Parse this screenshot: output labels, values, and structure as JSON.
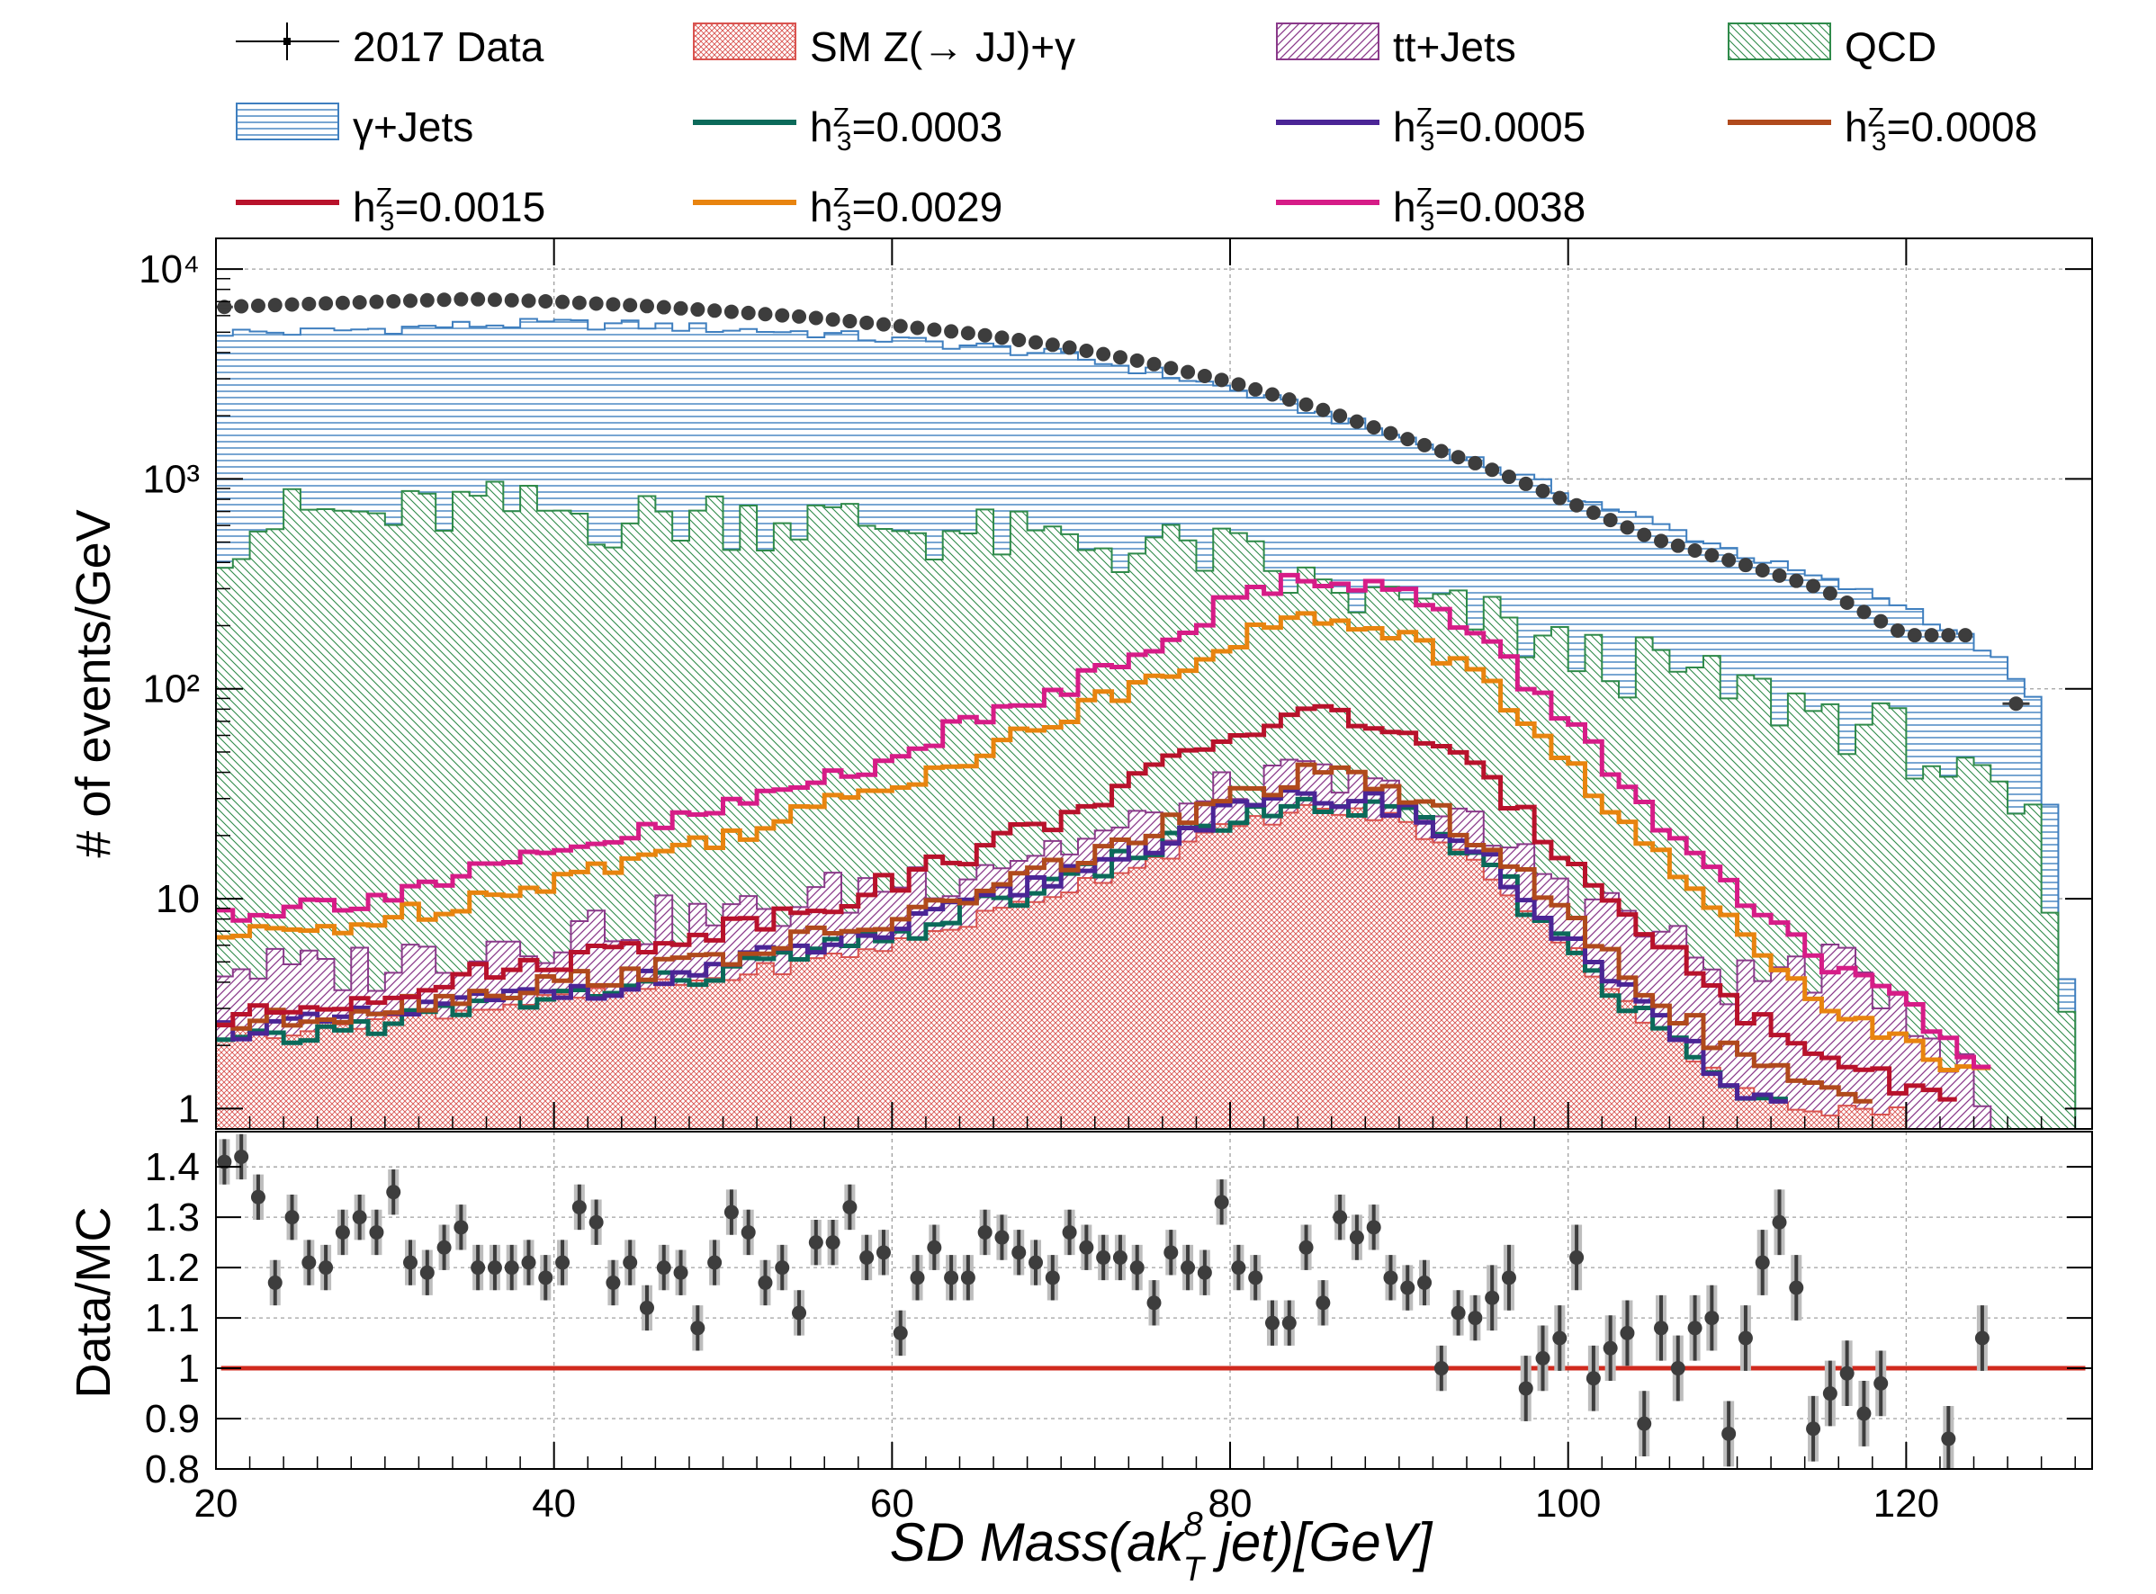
{
  "legend": {
    "data": "2017 Data",
    "sm": "SM Z(→ JJ)+γ",
    "tt": "tt+Jets",
    "qcd": "QCD",
    "gjets": "γ+Jets",
    "h3_0003": "=0.0003",
    "h3_0005": "=0.0005",
    "h3_0008": "=0.0008",
    "h3_0015": "=0.0015",
    "h3_0029": "=0.0029",
    "h3_0038": "=0.0038",
    "h3_symbol": "h",
    "h3_sub": "3",
    "h3_sup": "Z"
  },
  "chart_data": [
    {
      "type": "area",
      "panel": "main",
      "ylabel": "# of events/GeV",
      "yscale": "log",
      "ylim": [
        0.8,
        14000
      ],
      "xlim": [
        20,
        131
      ],
      "y_ticks": [
        "10⁴",
        "10³",
        "10²",
        "10",
        "1"
      ],
      "grid": true,
      "legend_position": "top",
      "series": [
        {
          "name": "2017 Data",
          "kind": "points",
          "x": [
            20.5,
            25,
            30,
            35,
            40,
            45,
            50,
            55,
            60,
            65,
            70,
            75,
            80,
            85,
            90,
            95,
            100,
            105,
            110,
            115,
            120,
            124.5,
            126.5
          ],
          "y": [
            6600,
            6800,
            7000,
            7200,
            7000,
            6700,
            6300,
            5900,
            5400,
            4900,
            4300,
            3600,
            2900,
            2200,
            1600,
            1150,
            780,
            520,
            400,
            300,
            180,
            180,
            85
          ]
        },
        {
          "name": "γ+Jets",
          "kind": "stack",
          "x": [
            20,
            25,
            30,
            35,
            40,
            45,
            50,
            55,
            60,
            65,
            70,
            75,
            80,
            85,
            90,
            95,
            100,
            105,
            110,
            115,
            120,
            125,
            128,
            130
          ],
          "y": [
            5000,
            5000,
            5200,
            5400,
            5500,
            5400,
            5200,
            5000,
            4600,
            4300,
            3900,
            3300,
            2700,
            2100,
            1600,
            1200,
            850,
            620,
            450,
            330,
            250,
            150,
            80,
            1.5
          ]
        },
        {
          "name": "QCD",
          "kind": "stack",
          "x": [
            20,
            25,
            30,
            35,
            40,
            45,
            50,
            55,
            60,
            65,
            70,
            75,
            80,
            85,
            90,
            95,
            100,
            105,
            110,
            115,
            120,
            125,
            128,
            130
          ],
          "y": [
            550,
            700,
            650,
            750,
            700,
            650,
            700,
            650,
            600,
            550,
            500,
            480,
            450,
            300,
            250,
            220,
            150,
            130,
            100,
            80,
            60,
            30,
            20,
            1.1
          ]
        },
        {
          "name": "tt+Jets",
          "kind": "stack",
          "x": [
            20,
            25,
            30,
            35,
            40,
            45,
            50,
            55,
            60,
            65,
            70,
            75,
            80,
            85,
            90,
            95,
            100,
            105,
            110,
            115,
            120,
            125
          ],
          "y": [
            5,
            4.5,
            5,
            6,
            7,
            8,
            8,
            10,
            12,
            15,
            18,
            22,
            32,
            38,
            30,
            20,
            12,
            7,
            4,
            5,
            3.5,
            1
          ]
        },
        {
          "name": "SM Z(→ JJ)+γ",
          "kind": "stack",
          "x": [
            20,
            25,
            30,
            35,
            40,
            45,
            50,
            55,
            60,
            65,
            70,
            75,
            80,
            85,
            90,
            95,
            100,
            105,
            110,
            115,
            120
          ],
          "y": [
            2.2,
            2.4,
            2.7,
            3,
            3.3,
            3.7,
            4.2,
            5,
            6,
            8,
            11,
            15,
            22,
            27,
            24,
            14,
            6,
            2.5,
            1.2,
            1,
            1
          ]
        },
        {
          "name": "h₃ᶻ=0.0003",
          "kind": "line",
          "color": "#0b6a5a",
          "x": [
            20,
            25,
            30,
            35,
            40,
            45,
            50,
            55,
            60,
            65,
            70,
            75,
            80,
            85,
            90,
            95,
            100,
            105,
            110,
            113
          ],
          "y": [
            2,
            2.2,
            2.6,
            3,
            3.4,
            3.8,
            4.5,
            5.5,
            6.5,
            9,
            12,
            17,
            24,
            28,
            26,
            15,
            6,
            2.5,
            1.2,
            1
          ]
        },
        {
          "name": "h₃ᶻ=0.0005",
          "kind": "line",
          "color": "#4b2596",
          "x": [
            20,
            25,
            30,
            35,
            40,
            45,
            50,
            55,
            60,
            65,
            70,
            75,
            80,
            85,
            90,
            95,
            100,
            105,
            110,
            113
          ],
          "y": [
            2.4,
            2.5,
            2.8,
            3.2,
            3.6,
            4,
            4.8,
            5.8,
            7,
            9.5,
            13,
            18,
            26,
            31,
            28,
            16,
            6.5,
            2.7,
            1.3,
            1
          ]
        },
        {
          "name": "h₃ᶻ=0.0008",
          "kind": "line",
          "color": "#b04a1c",
          "x": [
            20,
            25,
            30,
            35,
            40,
            45,
            50,
            55,
            60,
            65,
            70,
            75,
            80,
            85,
            90,
            95,
            100,
            105,
            110,
            115,
            118
          ],
          "y": [
            2.5,
            2.7,
            3.1,
            3.5,
            4,
            4.5,
            5.3,
            6.4,
            7.8,
            10.5,
            14.5,
            20,
            30,
            40,
            33,
            19,
            8,
            3.5,
            1.8,
            1.2,
            1
          ]
        },
        {
          "name": "h₃ᶻ=0.0015",
          "kind": "line",
          "color": "#b8122b",
          "x": [
            20,
            25,
            30,
            35,
            40,
            45,
            50,
            55,
            60,
            65,
            70,
            75,
            80,
            85,
            90,
            95,
            100,
            105,
            110,
            115,
            120,
            123
          ],
          "y": [
            2.6,
            3,
            3.6,
            4.3,
            5.1,
            6,
            7.3,
            9,
            12,
            17,
            25,
            38,
            60,
            78,
            65,
            38,
            16,
            7,
            3,
            1.8,
            1.3,
            1
          ]
        },
        {
          "name": "h₃ᶻ=0.0029",
          "kind": "line",
          "color": "#e8840f",
          "x": [
            20,
            25,
            30,
            35,
            40,
            45,
            50,
            55,
            60,
            65,
            70,
            75,
            80,
            85,
            90,
            95,
            100,
            105,
            110,
            115,
            120,
            125
          ],
          "y": [
            6.5,
            7,
            8,
            10,
            12.5,
            15.5,
            20,
            26,
            35,
            50,
            72,
            110,
            170,
            220,
            190,
            110,
            45,
            17,
            7,
            3.5,
            2,
            1.5
          ]
        },
        {
          "name": "h₃ᶻ=0.0038",
          "kind": "line",
          "color": "#d61c87",
          "x": [
            20,
            25,
            30,
            35,
            40,
            45,
            50,
            55,
            60,
            65,
            70,
            75,
            80,
            85,
            90,
            95,
            100,
            105,
            110,
            115,
            120,
            125
          ],
          "y": [
            8.5,
            9.2,
            10.5,
            13,
            16,
            20.5,
            27,
            35,
            48,
            70,
            100,
            160,
            260,
            350,
            300,
            170,
            70,
            26,
            10,
            5,
            3,
            1.6
          ]
        }
      ]
    },
    {
      "type": "scatter",
      "panel": "ratio",
      "ylabel": "Data/MC",
      "xlabel": "SD   Mass(ak",
      "xlabel_sup": "8",
      "xlabel_sub": "T",
      "xlabel_tail": "   jet)[GeV]",
      "xlim": [
        20,
        131
      ],
      "ylim": [
        0.8,
        1.47
      ],
      "x_ticks": [
        "20",
        "40",
        "60",
        "80",
        "100",
        "120"
      ],
      "y_ticks": [
        "1.4",
        "1.3",
        "1.2",
        "1.1",
        "1",
        "0.9",
        "0.8"
      ],
      "reference_line": 1,
      "grid": true,
      "x": [
        20.5,
        21.5,
        22.5,
        23.5,
        24.5,
        25.5,
        26.5,
        27.5,
        28.5,
        29.5,
        30.5,
        31.5,
        32.5,
        33.5,
        34.5,
        35.5,
        36.5,
        37.5,
        38.5,
        39.5,
        40.5,
        41.5,
        42.5,
        43.5,
        44.5,
        45.5,
        46.5,
        47.5,
        48.5,
        49.5,
        50.5,
        51.5,
        52.5,
        53.5,
        54.5,
        55.5,
        56.5,
        57.5,
        58.5,
        59.5,
        60.5,
        61.5,
        62.5,
        63.5,
        64.5,
        65.5,
        66.5,
        67.5,
        68.5,
        69.5,
        70.5,
        71.5,
        72.5,
        73.5,
        74.5,
        75.5,
        76.5,
        77.5,
        78.5,
        79.5,
        80.5,
        81.5,
        82.5,
        83.5,
        84.5,
        85.5,
        86.5,
        87.5,
        88.5,
        89.5,
        90.5,
        91.5,
        92.5,
        93.5,
        94.5,
        95.5,
        96.5,
        97.5,
        98.5,
        99.5,
        100.5,
        101.5,
        102.5,
        103.5,
        104.5,
        105.5,
        106.5,
        107.5,
        108.5,
        109.5,
        110.5,
        111.5,
        112.5,
        113.5,
        114.5,
        115.5,
        116.5,
        117.5,
        118.5,
        122.5,
        124.5
      ],
      "values": [
        1.41,
        1.42,
        1.34,
        1.17,
        1.3,
        1.21,
        1.2,
        1.27,
        1.3,
        1.27,
        1.35,
        1.21,
        1.19,
        1.24,
        1.28,
        1.2,
        1.2,
        1.2,
        1.21,
        1.18,
        1.21,
        1.32,
        1.29,
        1.17,
        1.21,
        1.12,
        1.2,
        1.19,
        1.08,
        1.21,
        1.31,
        1.27,
        1.17,
        1.2,
        1.11,
        1.25,
        1.25,
        1.32,
        1.22,
        1.23,
        1.07,
        1.18,
        1.24,
        1.18,
        1.18,
        1.27,
        1.26,
        1.23,
        1.21,
        1.18,
        1.27,
        1.24,
        1.22,
        1.22,
        1.2,
        1.13,
        1.23,
        1.2,
        1.19,
        1.33,
        1.2,
        1.18,
        1.09,
        1.09,
        1.24,
        1.13,
        1.3,
        1.26,
        1.28,
        1.18,
        1.16,
        1.17,
        1.0,
        1.11,
        1.1,
        1.14,
        1.18,
        0.96,
        1.02,
        1.06,
        1.22,
        0.98,
        1.04,
        1.07,
        0.89,
        1.08,
        1.0,
        1.08,
        1.1,
        0.87,
        1.06,
        1.21,
        1.29,
        1.16,
        0.88,
        0.95,
        0.99,
        0.91,
        0.97,
        0.86,
        1.06
      ]
    }
  ]
}
